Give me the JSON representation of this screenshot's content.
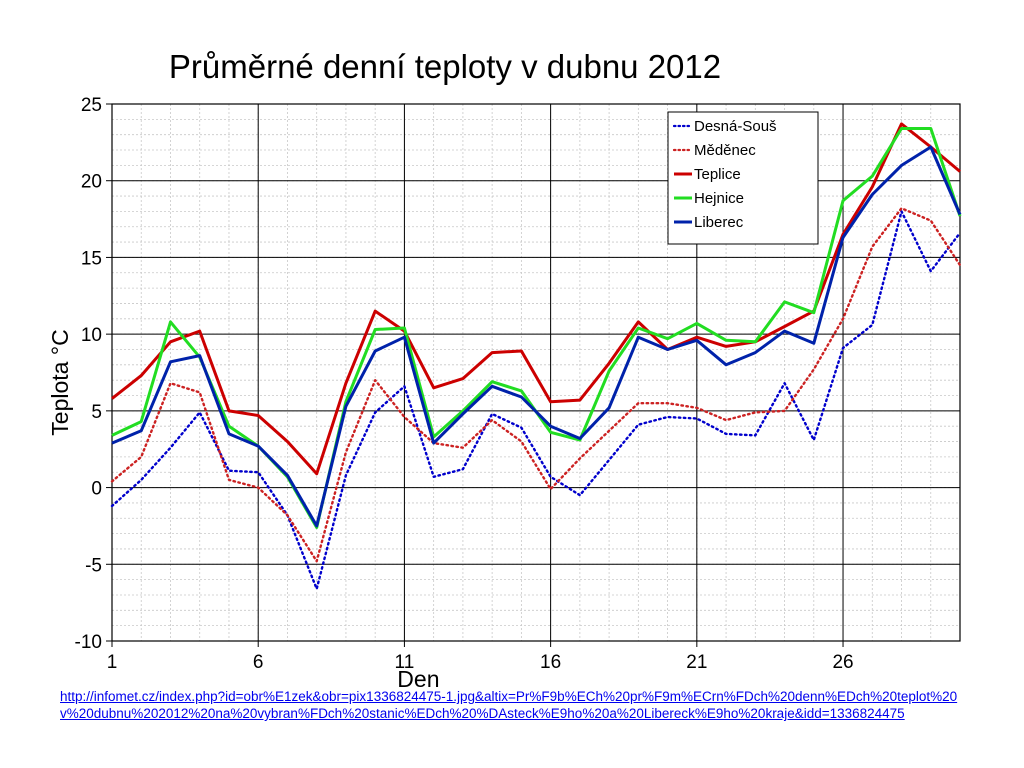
{
  "chart_data": {
    "type": "line",
    "title": "Průměrné denní teploty v dubnu 2012",
    "xlabel": "Den",
    "ylabel": "Teplota  °C",
    "xlim": [
      1,
      30
    ],
    "ylim": [
      -10,
      25
    ],
    "x_ticks": [
      1,
      6,
      11,
      16,
      21,
      26
    ],
    "y_ticks": [
      -10,
      -5,
      0,
      5,
      10,
      15,
      20,
      25
    ],
    "grid": true,
    "legend_position": "top-right",
    "x": [
      1,
      2,
      3,
      4,
      5,
      6,
      7,
      8,
      9,
      10,
      11,
      12,
      13,
      14,
      15,
      16,
      17,
      18,
      19,
      20,
      21,
      22,
      23,
      24,
      25,
      26,
      27,
      28,
      29,
      30
    ],
    "series": [
      {
        "name": "Desná-Souš",
        "color": "#0000cc",
        "style": "dotted",
        "values": [
          -1.2,
          0.5,
          2.6,
          4.9,
          1.1,
          1.0,
          -1.8,
          -6.6,
          0.8,
          4.9,
          6.6,
          0.7,
          1.2,
          4.8,
          3.9,
          0.7,
          -0.5,
          1.8,
          4.1,
          4.6,
          4.5,
          3.5,
          3.4,
          6.8,
          3.1,
          9.1,
          10.6,
          18.0,
          14.1,
          16.6
        ]
      },
      {
        "name": "Měděnec",
        "color": "#cc2222",
        "style": "dotted",
        "values": [
          0.4,
          2.0,
          6.8,
          6.2,
          0.5,
          0.0,
          -1.8,
          -4.8,
          2.3,
          7.0,
          4.6,
          2.9,
          2.6,
          4.4,
          3.0,
          -0.1,
          1.9,
          3.7,
          5.5,
          5.5,
          5.2,
          4.4,
          4.9,
          5.0,
          7.7,
          11.0,
          15.7,
          18.2,
          17.4,
          14.5
        ]
      },
      {
        "name": "Teplice",
        "color": "#cc0000",
        "style": "solid",
        "values": [
          5.8,
          7.3,
          9.5,
          10.2,
          5.0,
          4.7,
          3.0,
          0.9,
          6.8,
          11.5,
          10.2,
          6.5,
          7.1,
          8.8,
          8.9,
          5.6,
          5.7,
          8.1,
          10.8,
          9.0,
          9.8,
          9.2,
          9.5,
          10.5,
          11.5,
          16.5,
          19.6,
          23.7,
          22.2,
          20.6
        ]
      },
      {
        "name": "Hejnice",
        "color": "#22dd22",
        "style": "solid",
        "values": [
          3.4,
          4.3,
          10.8,
          8.5,
          4.0,
          2.7,
          0.7,
          -2.6,
          5.6,
          10.3,
          10.4,
          3.3,
          5.0,
          6.9,
          6.3,
          3.6,
          3.1,
          7.6,
          10.4,
          9.7,
          10.7,
          9.6,
          9.5,
          12.1,
          11.4,
          18.7,
          20.3,
          23.4,
          23.4,
          17.7
        ]
      },
      {
        "name": "Liberec",
        "color": "#0022aa",
        "style": "solid",
        "values": [
          2.9,
          3.7,
          8.2,
          8.6,
          3.5,
          2.7,
          0.8,
          -2.5,
          5.3,
          8.9,
          9.8,
          2.9,
          4.8,
          6.6,
          5.9,
          4.0,
          3.2,
          5.2,
          9.8,
          9.0,
          9.6,
          8.0,
          8.8,
          10.2,
          9.4,
          16.3,
          19.1,
          21.0,
          22.2,
          17.8
        ]
      }
    ]
  },
  "source_link": "http://infomet.cz/index.php?id=obr%E1zek&obr=pix1336824475-1.jpg&altix=Pr%F9b%ECh%20pr%F9m%ECrn%FDch%20denn%EDch%20teplot%20v%20dubnu%202012%20na%20vybran%FDch%20stanic%EDch%20%DAsteck%E9ho%20a%20Libereck%E9ho%20kraje&idd=1336824475"
}
